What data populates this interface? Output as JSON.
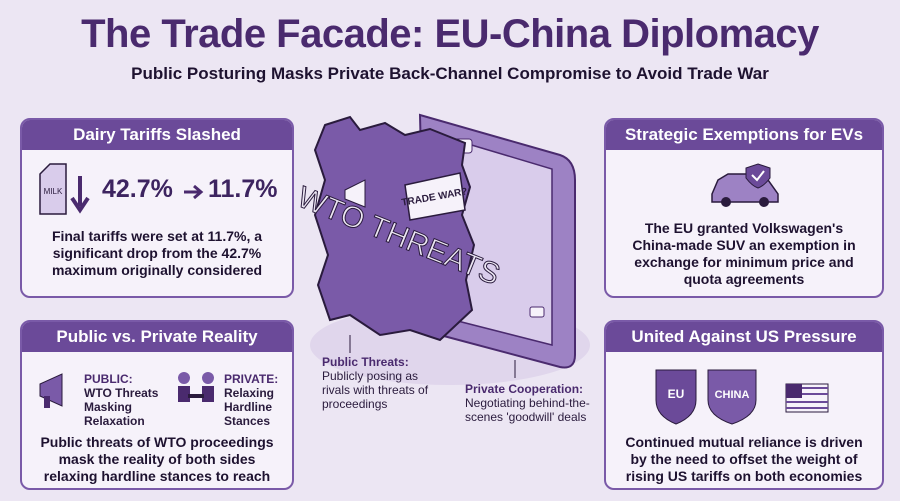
{
  "header": {
    "title": "The Trade Facade: EU-China Diplomacy",
    "subtitle": "Public Posturing Masks Private Back-Channel Compromise to Avoid Trade War"
  },
  "panels": {
    "dairy": {
      "title": "Dairy Tariffs Slashed",
      "icon_label": "MILK",
      "from": "42.7%",
      "to": "11.7%",
      "body": "Final tariffs were set at 11.7%, a significant drop from the 42.7% maximum originally considered"
    },
    "reality": {
      "title": "Public vs. Private Reality",
      "public_label": "PUBLIC:",
      "public_text": "WTO Threats Masking Relaxation",
      "private_label": "PRIVATE:",
      "private_text": "Relaxing Hardline Stances",
      "body": "Public threats of WTO proceedings mask the reality of both sides relaxing hardline stances to reach deals"
    },
    "evs": {
      "title": "Strategic Exemptions for EVs",
      "body": "The EU granted Volkswagen's China-made SUV an exemption in exchange for minimum price and quota agreements"
    },
    "us": {
      "title": "United Against US Pressure",
      "shield_left": "EU",
      "shield_right": "CHINA",
      "body": "Continued mutual reliance is driven by the need to offset the weight of rising US tariffs on both economies"
    }
  },
  "center": {
    "wall_text": "WTO THREATS",
    "bubble_text": "TRADE WAR?",
    "public_caption": {
      "label": "Public Threats:",
      "text": "Publicly posing as rivals with threats of proceedings"
    },
    "private_caption": {
      "label": "Private Cooperation:",
      "text": "Negotiating behind-the-scenes 'goodwill' deals"
    }
  }
}
